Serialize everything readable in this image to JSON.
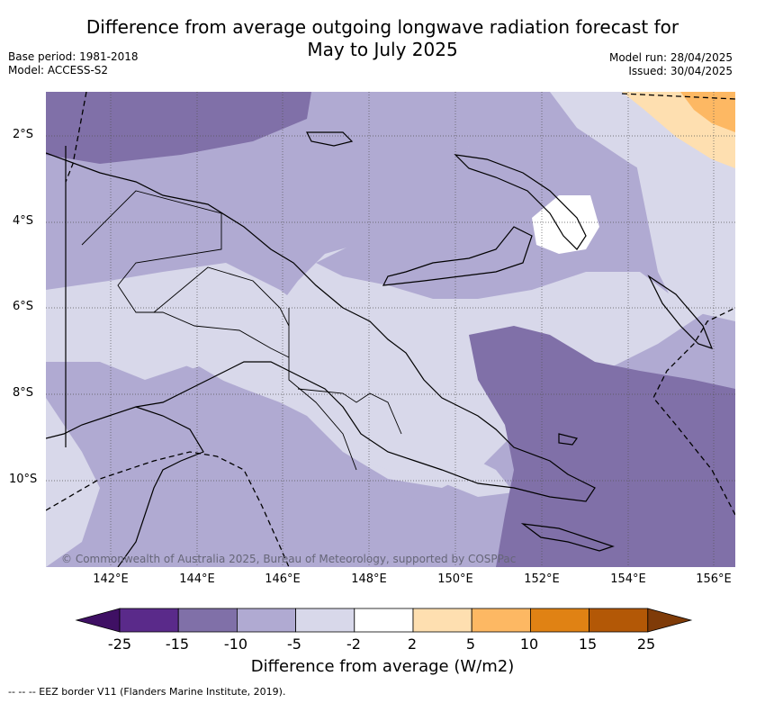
{
  "title_line1": "Difference from average outgoing longwave radiation forecast for",
  "title_line2": "May to July 2025",
  "base_period": "Base period: 1981-2018",
  "model": "Model: ACCESS-S2",
  "model_run": "Model run: 28/04/2025",
  "issued": "Issued: 30/04/2025",
  "lat_labels": [
    "2°S",
    "4°S",
    "6°S",
    "8°S",
    "10°S"
  ],
  "lon_labels": [
    "142°E",
    "144°E",
    "146°E",
    "148°E",
    "150°E",
    "152°E",
    "154°E",
    "156°E"
  ],
  "colorbar": {
    "ticks": [
      "-25",
      "-15",
      "-10",
      "-5",
      "-2",
      "2",
      "5",
      "10",
      "15",
      "25"
    ],
    "colors": [
      "#3f1064",
      "#5a2a8a",
      "#8070a8",
      "#b0aad2",
      "#d8d8ea",
      "#ffffff",
      "#fedfb0",
      "#fdb863",
      "#e08214",
      "#b35806",
      "#7f3b08"
    ],
    "title": "Difference from average (W/m2)"
  },
  "copyright": "© Commonwealth of Australia 2025, Bureau of Meteorology, supported by COSPPac",
  "eez_note": "--  --  -- EEZ border V11 (Flanders Marine Institute, 2019)."
}
